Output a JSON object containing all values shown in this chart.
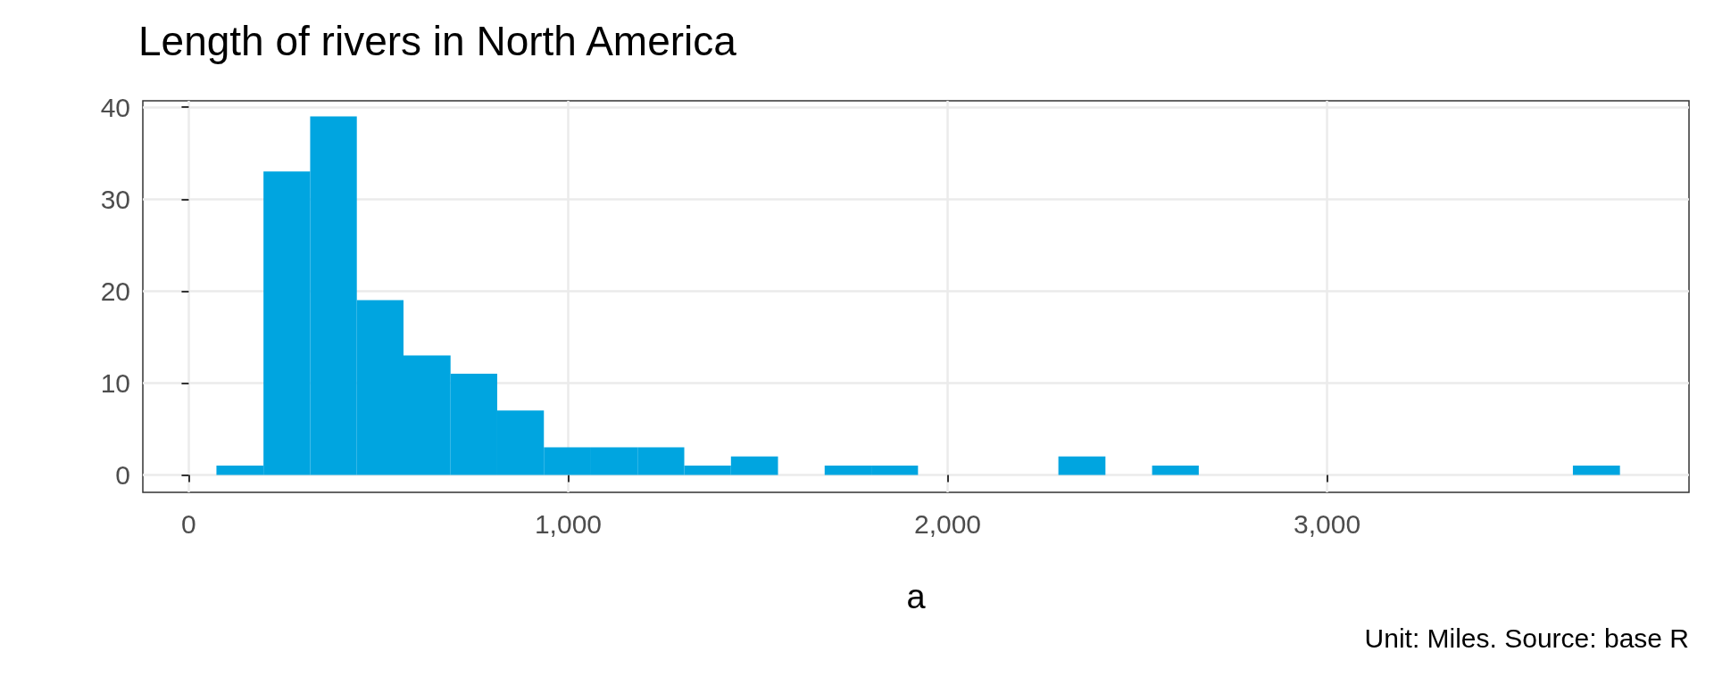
{
  "chart_data": {
    "type": "histogram",
    "title": "Length of rivers in North America",
    "xlabel": "a",
    "annotations": [
      "Unit: Miles. Source: base R"
    ],
    "bins": [
      73,
      197,
      320,
      443,
      566,
      690,
      813,
      936,
      1060,
      1183,
      1306,
      1429,
      1553,
      1676,
      1799,
      1922,
      2046,
      2169,
      2292,
      2416,
      2539,
      2662,
      2785,
      2909,
      3032,
      3155,
      3279,
      3402,
      3525,
      3648,
      3772
    ],
    "values": [
      1,
      33,
      39,
      19,
      13,
      11,
      7,
      3,
      3,
      3,
      1,
      2,
      0,
      1,
      1,
      0,
      0,
      0,
      2,
      0,
      1,
      0,
      0,
      0,
      0,
      0,
      0,
      0,
      0,
      1
    ],
    "color": "#00a5e0",
    "xlim": [
      -121,
      3954
    ],
    "xticks": [
      0,
      {
        "value": 1000,
        "label": "1,000"
      },
      {
        "value": 2000,
        "label": "2,000"
      },
      {
        "value": 3000,
        "label": "3,000"
      }
    ],
    "ylim": [
      -1.9,
      40.7
    ],
    "yticks": [
      0,
      10,
      20,
      30,
      40
    ],
    "grid": true
  }
}
